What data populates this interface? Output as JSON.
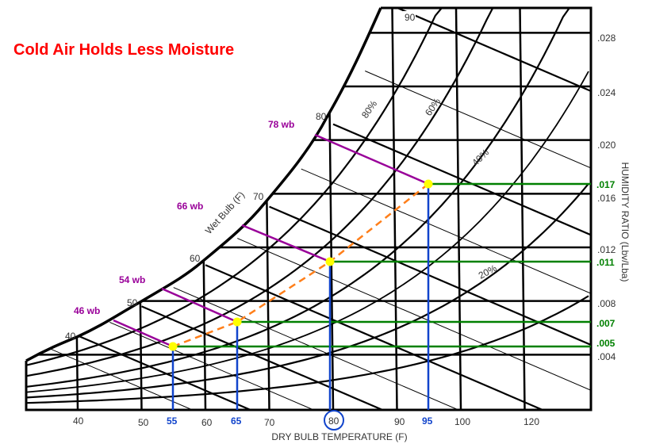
{
  "title": "Cold Air Holds Less Moisture",
  "x_axis": {
    "label": "DRY BULB TEMPERATURE (F)",
    "ticks": [
      "40",
      "50",
      "60",
      "70",
      "90",
      "100",
      "120"
    ],
    "highlighted_ticks": [
      "55",
      "65",
      "80",
      "95"
    ]
  },
  "y_axis": {
    "label": "HUMIDITY RATIO (Lbv/Lba)",
    "ticks": [
      ".028",
      ".024",
      ".020",
      ".016",
      ".012",
      ".008",
      ".004"
    ],
    "highlighted_ticks": [
      ".017",
      ".011",
      ".007",
      ".005"
    ]
  },
  "wet_bulb": {
    "axis_label": "Wet Bulb (F)",
    "ticks": [
      "40",
      "50",
      "60",
      "70",
      "80",
      "90"
    ]
  },
  "rh_labels": [
    "80%",
    "60%",
    "40%",
    "20%"
  ],
  "states": [
    {
      "dry_bulb": "55",
      "wet_bulb_label": "46 wb",
      "humidity_ratio": ".005"
    },
    {
      "dry_bulb": "65",
      "wet_bulb_label": "54 wb",
      "humidity_ratio": ".007"
    },
    {
      "dry_bulb": "80",
      "wet_bulb_label": "66 wb",
      "humidity_ratio": ".011"
    },
    {
      "dry_bulb": "95",
      "wet_bulb_label": "78 wb",
      "humidity_ratio": ".017"
    }
  ],
  "colors": {
    "title": "#ff0000",
    "wet_bulb_lines": "#990099",
    "humidity_lines": "#008000",
    "dry_bulb_lines": "#1144cc",
    "process_line": "#ff7f1a",
    "state_points": "#ffff00"
  }
}
